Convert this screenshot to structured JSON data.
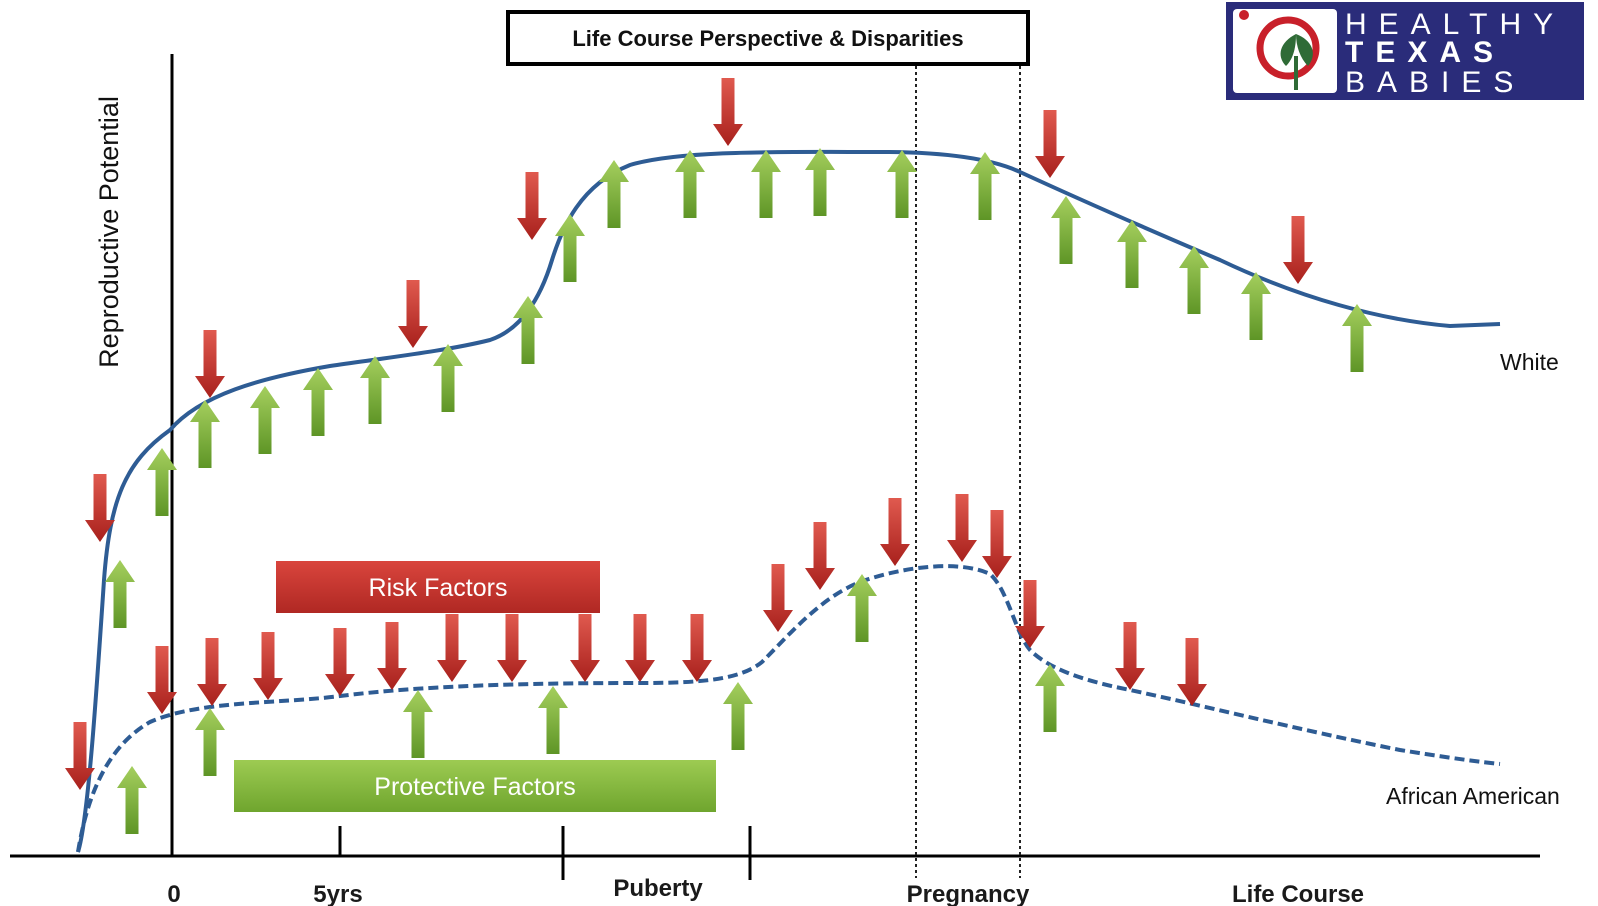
{
  "title": "Life Course Perspective & Disparities",
  "logo": {
    "lines": [
      "HEALTHY",
      "TEXAS",
      "BABIES"
    ],
    "colors": {
      "background": "#2a2c7a",
      "emblem_red": "#c8202a",
      "emblem_leaf": "#2f6b36"
    }
  },
  "y_axis_label": "Reproductive Potential",
  "x_ticks": [
    "0",
    "5yrs",
    "Puberty",
    "Pregnancy",
    "Life Course"
  ],
  "series": [
    {
      "name": "White",
      "style": "solid"
    },
    {
      "name": "African American",
      "style": "dashed"
    }
  ],
  "legend": {
    "risk_label": "Risk Factors",
    "protective_label": "Protective Factors"
  },
  "colors": {
    "curve": "#2e5c94",
    "risk": "#c9302c",
    "protective": "#7fb13a"
  },
  "icons": {
    "risk": "red-down-arrow-icon",
    "protective": "green-up-arrow-icon"
  }
}
